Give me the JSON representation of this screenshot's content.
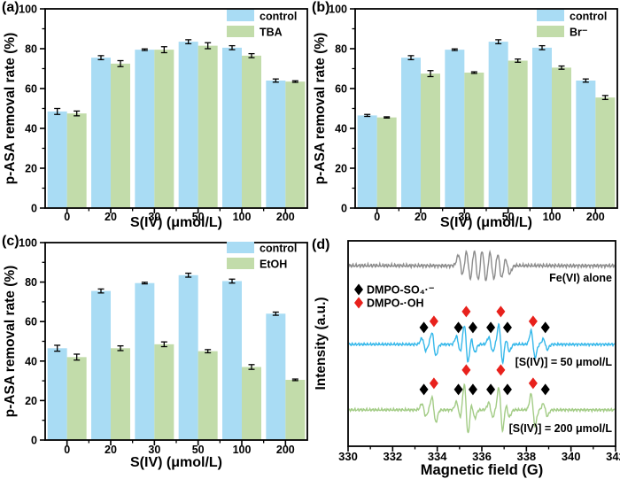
{
  "figure_title": "",
  "chart_data": [
    {
      "id": "a",
      "type": "bar",
      "panel_label": "(a)",
      "xlabel": "S(IV) (μmol/L)",
      "ylabel": "p-ASA removal rate (%)",
      "ylim": [
        0,
        100
      ],
      "yticks": [
        0,
        20,
        40,
        60,
        80,
        100
      ],
      "categories": [
        "0",
        "20",
        "30",
        "50",
        "100",
        "200"
      ],
      "series": [
        {
          "name": "control",
          "color": "#a9dcf4",
          "values": [
            48.5,
            75.5,
            79.5,
            83.5,
            80.5,
            64.0
          ],
          "errors": [
            1.5,
            1.0,
            0.4,
            1.0,
            1.0,
            0.8
          ]
        },
        {
          "name": "TBA",
          "color": "#c2dcaa",
          "values": [
            47.5,
            72.5,
            79.5,
            81.5,
            76.5,
            63.5
          ],
          "errors": [
            1.2,
            1.5,
            1.5,
            1.5,
            1.0,
            0.4
          ]
        }
      ]
    },
    {
      "id": "b",
      "type": "bar",
      "panel_label": "(b)",
      "xlabel": "S(IV) (μmol/L)",
      "ylabel": "p-ASA removal rate (%)",
      "ylim": [
        0,
        100
      ],
      "yticks": [
        0,
        20,
        40,
        60,
        80,
        100
      ],
      "categories": [
        "0",
        "20",
        "30",
        "50",
        "100",
        "200"
      ],
      "series": [
        {
          "name": "control",
          "color": "#a9dcf4",
          "values": [
            46.5,
            75.5,
            79.5,
            83.5,
            80.5,
            64.0
          ],
          "errors": [
            0.5,
            1.0,
            0.4,
            1.0,
            1.0,
            0.8
          ]
        },
        {
          "name": "Br⁻",
          "color": "#c2dcaa",
          "values": [
            45.5,
            67.5,
            68.0,
            74.0,
            70.5,
            55.5
          ],
          "errors": [
            0.3,
            1.5,
            0.4,
            0.8,
            0.8,
            1.0
          ]
        }
      ]
    },
    {
      "id": "c",
      "type": "bar",
      "panel_label": "(c)",
      "xlabel": "S(IV) (μmol/L)",
      "ylabel": "p-ASA removal rate (%)",
      "ylim": [
        0,
        100
      ],
      "yticks": [
        0,
        20,
        40,
        60,
        80,
        100
      ],
      "categories": [
        "0",
        "20",
        "30",
        "50",
        "100",
        "200"
      ],
      "series": [
        {
          "name": "control",
          "color": "#a9dcf4",
          "values": [
            46.5,
            75.5,
            79.5,
            83.5,
            80.5,
            64.0
          ],
          "errors": [
            1.5,
            1.0,
            0.4,
            1.0,
            1.0,
            0.8
          ]
        },
        {
          "name": "EtOH",
          "color": "#c2dcaa",
          "values": [
            42.0,
            46.5,
            48.5,
            45.0,
            37.0,
            30.5
          ],
          "errors": [
            1.5,
            1.2,
            1.2,
            0.8,
            1.2,
            0.4
          ]
        }
      ]
    },
    {
      "id": "d",
      "type": "line",
      "panel_label": "(d)",
      "xlabel": "Magnetic field (G)",
      "ylabel": "Intensity (a.u.)",
      "xlim": [
        330,
        342
      ],
      "xticks": [
        330,
        332,
        334,
        336,
        338,
        340,
        342
      ],
      "legend": [
        {
          "marker": "diamond",
          "color": "#000000",
          "label": "DMPO-SO₄·⁻"
        },
        {
          "marker": "diamond",
          "color": "#e8211c",
          "label": "DMPO-·OH"
        }
      ],
      "marker_positions": {
        "black": [
          333.4,
          334.95,
          335.6,
          336.4,
          337.15,
          338.85
        ],
        "red": [
          {
            "x": 333.85,
            "level": "side"
          },
          {
            "x": 335.3,
            "level": "high"
          },
          {
            "x": 336.85,
            "level": "high"
          },
          {
            "x": 338.3,
            "level": "side"
          }
        ]
      },
      "traces": [
        {
          "name": "Fe(VI) alone",
          "color": "#8c8c8c",
          "baseline_frac": 0.121,
          "noise": 2.3,
          "noise_phase": 0.7,
          "label_dy": 18,
          "markers": false,
          "peaks": [
            {
              "c": 335.05,
              "a": 12,
              "w": 0.1
            },
            {
              "c": 335.4,
              "a": 17,
              "w": 0.1
            },
            {
              "c": 335.75,
              "a": 19,
              "w": 0.1
            },
            {
              "c": 336.1,
              "a": 19,
              "w": 0.1
            },
            {
              "c": 336.45,
              "a": 17,
              "w": 0.1
            },
            {
              "c": 336.8,
              "a": 15,
              "w": 0.1
            },
            {
              "c": 337.15,
              "a": 9,
              "w": 0.1
            }
          ]
        },
        {
          "name": "[S(IV)] = 50 μmol/L",
          "color": "#35b8ea",
          "baseline_frac": 0.504,
          "noise": 1.7,
          "noise_phase": 1.9,
          "label_dy": 24,
          "markers": true,
          "marker_dy": {
            "black": -19,
            "red_side": -26,
            "red_high": -37
          },
          "peaks": [
            {
              "c": 333.4,
              "a": 7,
              "w": 0.09
            },
            {
              "c": 333.85,
              "a": 13,
              "w": 0.09
            },
            {
              "c": 334.95,
              "a": 9,
              "w": 0.09
            },
            {
              "c": 335.3,
              "a": 22,
              "w": 0.09
            },
            {
              "c": 335.6,
              "a": 9,
              "w": 0.09
            },
            {
              "c": 336.4,
              "a": 8,
              "w": 0.09
            },
            {
              "c": 336.85,
              "a": 22,
              "w": 0.09
            },
            {
              "c": 337.15,
              "a": 8,
              "w": 0.09
            },
            {
              "c": 338.3,
              "a": 15,
              "w": 0.09
            },
            {
              "c": 338.85,
              "a": 6,
              "w": 0.09
            }
          ]
        },
        {
          "name": "[S(IV)] = 200 μmol/L",
          "color": "#a3cc86",
          "baseline_frac": 0.823,
          "noise": 1.8,
          "noise_phase": 3.1,
          "label_dy": 25,
          "markers": true,
          "marker_dy": {
            "black": -23,
            "red_side": -30,
            "red_high": -45
          },
          "peaks": [
            {
              "c": 333.4,
              "a": 7,
              "w": 0.09
            },
            {
              "c": 333.85,
              "a": 14,
              "w": 0.09
            },
            {
              "c": 334.95,
              "a": 9,
              "w": 0.09
            },
            {
              "c": 335.3,
              "a": 29,
              "w": 0.09
            },
            {
              "c": 335.6,
              "a": 9,
              "w": 0.09
            },
            {
              "c": 336.4,
              "a": 8,
              "w": 0.09
            },
            {
              "c": 336.85,
              "a": 25,
              "w": 0.09
            },
            {
              "c": 337.15,
              "a": 8,
              "w": 0.09
            },
            {
              "c": 338.3,
              "a": 18,
              "w": 0.09
            },
            {
              "c": 338.85,
              "a": 7,
              "w": 0.09
            }
          ]
        }
      ]
    }
  ]
}
